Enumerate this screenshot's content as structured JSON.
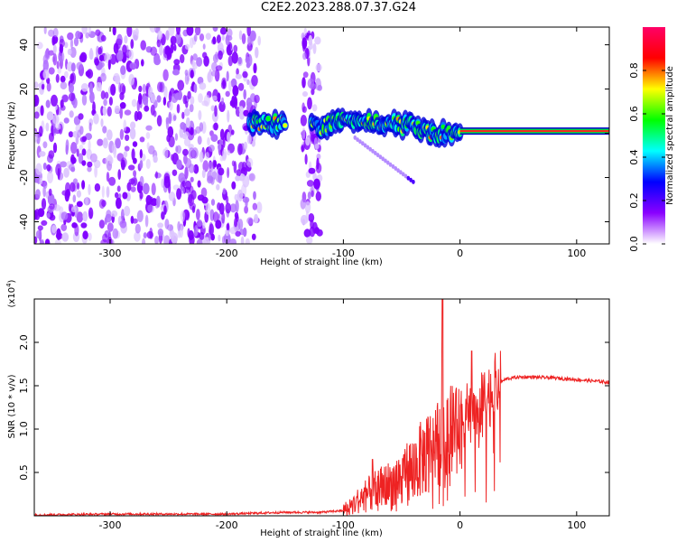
{
  "title": "C2E2.2023.288.07.37.G24",
  "chart_data": [
    {
      "type": "heatmap",
      "xlabel": "Height of straight line (km)",
      "ylabel": "Frequency (Hz)",
      "xlim": [
        -365,
        128
      ],
      "ylim": [
        -50,
        48
      ],
      "x_ticks": [
        -300,
        -200,
        -100,
        0,
        100
      ],
      "y_ticks": [
        -40,
        -20,
        0,
        20,
        40
      ],
      "x_tick_labels": [
        "-300",
        "-200",
        "-100",
        "0",
        "100"
      ],
      "y_tick_labels": [
        "-40",
        "-20",
        "0",
        "20",
        "40"
      ],
      "colorbar": {
        "label": "Normalized spectral amplitude",
        "range": [
          0,
          1
        ],
        "ticks": [
          0.0,
          0.2,
          0.4,
          0.6,
          0.8
        ],
        "tick_labels": [
          "0.0",
          "0.2",
          "0.4",
          "0.6",
          "0.8"
        ],
        "colors": [
          "#ffffff",
          "#8a00ff",
          "#0000ff",
          "#00ffff",
          "#00ff00",
          "#ffff00",
          "#ff0000",
          "#ff0066"
        ]
      },
      "noise_regions_km": [
        [
          -365,
          -172
        ],
        [
          -135,
          -120
        ]
      ],
      "signal_track": {
        "x": [
          -180,
          -160,
          -140,
          -120,
          -100,
          -80,
          -60,
          -40,
          -20,
          0,
          50,
          128
        ],
        "y": [
          5,
          4,
          4,
          3,
          5,
          6,
          4,
          3,
          0,
          0,
          0,
          1
        ]
      },
      "secondary_branch": {
        "x": [
          -90,
          -60,
          -40
        ],
        "y": [
          -2,
          -10,
          -22
        ]
      }
    },
    {
      "type": "line",
      "xlabel": "Height of straight line (km)",
      "ylabel": "SNR (10 * v/v)",
      "y_multiplier_label": "(x10",
      "y_multiplier_exponent": "4",
      "xlim": [
        -365,
        128
      ],
      "ylim": [
        0,
        2.5
      ],
      "x_ticks": [
        -300,
        -200,
        -100,
        0,
        100
      ],
      "y_ticks": [
        0.5,
        1.0,
        1.5,
        2.0
      ],
      "x_tick_labels": [
        "-300",
        "-200",
        "-100",
        "0",
        "100"
      ],
      "y_tick_labels": [
        "0.5",
        "1.0",
        "1.5",
        "2.0"
      ],
      "series": [
        {
          "color": "#ee2222",
          "x": [
            -365,
            -300,
            -200,
            -150,
            -120,
            -100,
            -90,
            -80,
            -70,
            -60,
            -50,
            -40,
            -30,
            -20,
            -15,
            -10,
            -5,
            0,
            10,
            20,
            30,
            40,
            50,
            60,
            80,
            100,
            128
          ],
          "y": [
            0.01,
            0.02,
            0.02,
            0.04,
            0.04,
            0.06,
            0.15,
            0.25,
            0.3,
            0.35,
            0.45,
            0.55,
            0.7,
            0.85,
            1.0,
            1.05,
            1.1,
            1.1,
            1.2,
            1.3,
            1.5,
            1.58,
            1.6,
            1.6,
            1.59,
            1.57,
            1.54
          ]
        }
      ],
      "spikes": [
        {
          "x": -15,
          "y": 2.5
        },
        {
          "x": 10,
          "y": 1.9
        },
        {
          "x": -75,
          "y": 0.65
        }
      ]
    }
  ]
}
